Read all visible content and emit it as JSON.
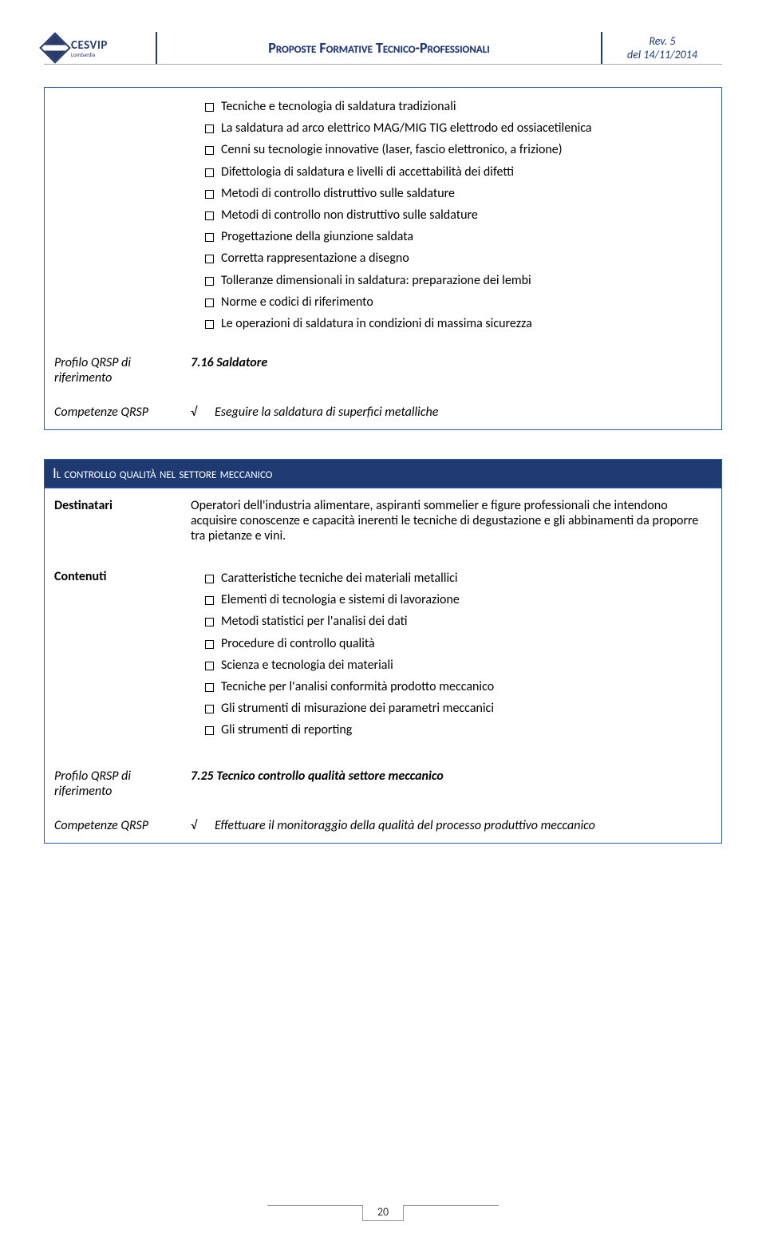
{
  "header": {
    "logo_name": "CESVIP",
    "logo_sub": "Lombardia",
    "title": "Proposte Formative Tecnico-Professionali",
    "rev_line1": "Rev. 5",
    "rev_line2": "del 14/11/2014"
  },
  "box1": {
    "bullets": [
      "Tecniche e tecnologia di saldatura tradizionali",
      "La saldatura ad arco elettrico MAG/MIG TIG elettrodo ed ossiacetilenica",
      "Cenni su tecnologie innovative (laser, fascio elettronico, a frizione)",
      "Difettologia di saldatura e livelli di accettabilità dei difetti",
      "Metodi di controllo distruttivo sulle saldature",
      "Metodi di controllo non distruttivo sulle saldature",
      "Progettazione della giunzione saldata",
      "Corretta rappresentazione a disegno",
      "Tolleranze dimensionali in saldatura: preparazione dei lembi",
      "Norme e codici di riferimento",
      "Le operazioni di saldatura in condizioni di massima sicurezza"
    ],
    "profilo_label": "Profilo QRSP di riferimento",
    "profilo_value": "7.16  Saldatore",
    "comp_label": "Competenze QRSP",
    "comp_value": "Eseguire la saldatura di superfici metalliche"
  },
  "section2_title": "Il controllo qualità nel settore meccanico",
  "box2": {
    "dest_label": "Destinatari",
    "dest_value": "Operatori dell'industria alimentare, aspiranti sommelier e figure professionali che intendono acquisire conoscenze e capacità inerenti le tecniche di degustazione e gli abbinamenti da proporre tra pietanze e vini.",
    "cont_label": "Contenuti",
    "bullets": [
      "Caratteristiche tecniche dei materiali metallici",
      "Elementi di tecnologia e sistemi di lavorazione",
      "Metodi statistici per l'analisi dei dati",
      "Procedure di controllo qualità",
      "Scienza e tecnologia dei materiali",
      "Tecniche per l'analisi conformità prodotto meccanico",
      "Gli strumenti di misurazione dei parametri meccanici",
      "Gli strumenti di reporting"
    ],
    "profilo_label": "Profilo QRSP di riferimento",
    "profilo_value": "7.25  Tecnico controllo qualità settore meccanico",
    "comp_label": "Competenze QRSP",
    "comp_value": "Effettuare il monitoraggio della qualità del processo produttivo meccanico"
  },
  "page_number": "20"
}
